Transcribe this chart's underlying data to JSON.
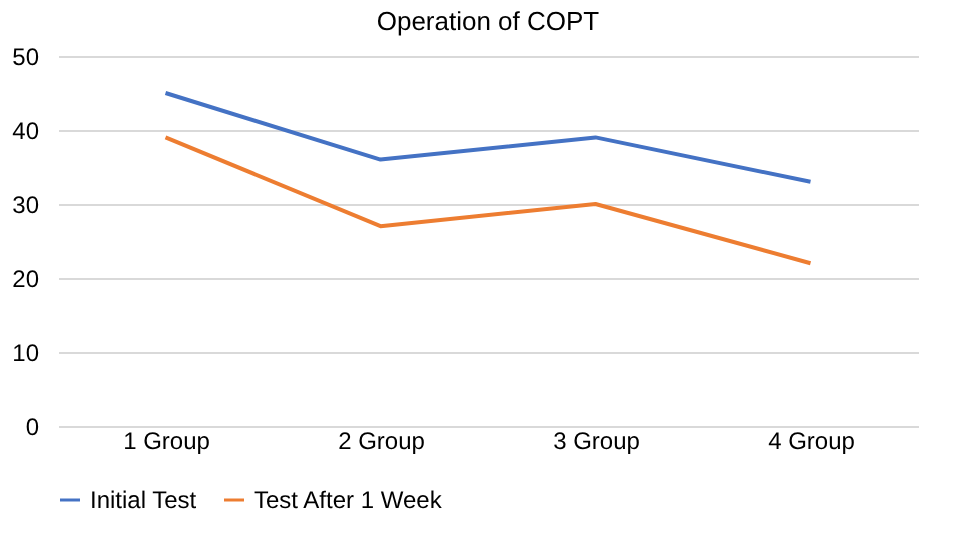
{
  "chart_data": {
    "type": "line",
    "title": "Operation of COPT",
    "categories": [
      "1 Group",
      "2 Group",
      "3 Group",
      "4 Group"
    ],
    "series": [
      {
        "name": "Initial Test",
        "color": "#4472c4",
        "values": [
          45,
          36,
          39,
          33
        ]
      },
      {
        "name": "Test After 1 Week",
        "color": "#ed7d31",
        "values": [
          39,
          27,
          30,
          22
        ]
      }
    ],
    "ylim": [
      0,
      50
    ],
    "yticks": [
      0,
      10,
      20,
      30,
      40,
      50
    ],
    "grid": "y",
    "legend": "bottom",
    "marker": "none",
    "line_style": "solid"
  }
}
